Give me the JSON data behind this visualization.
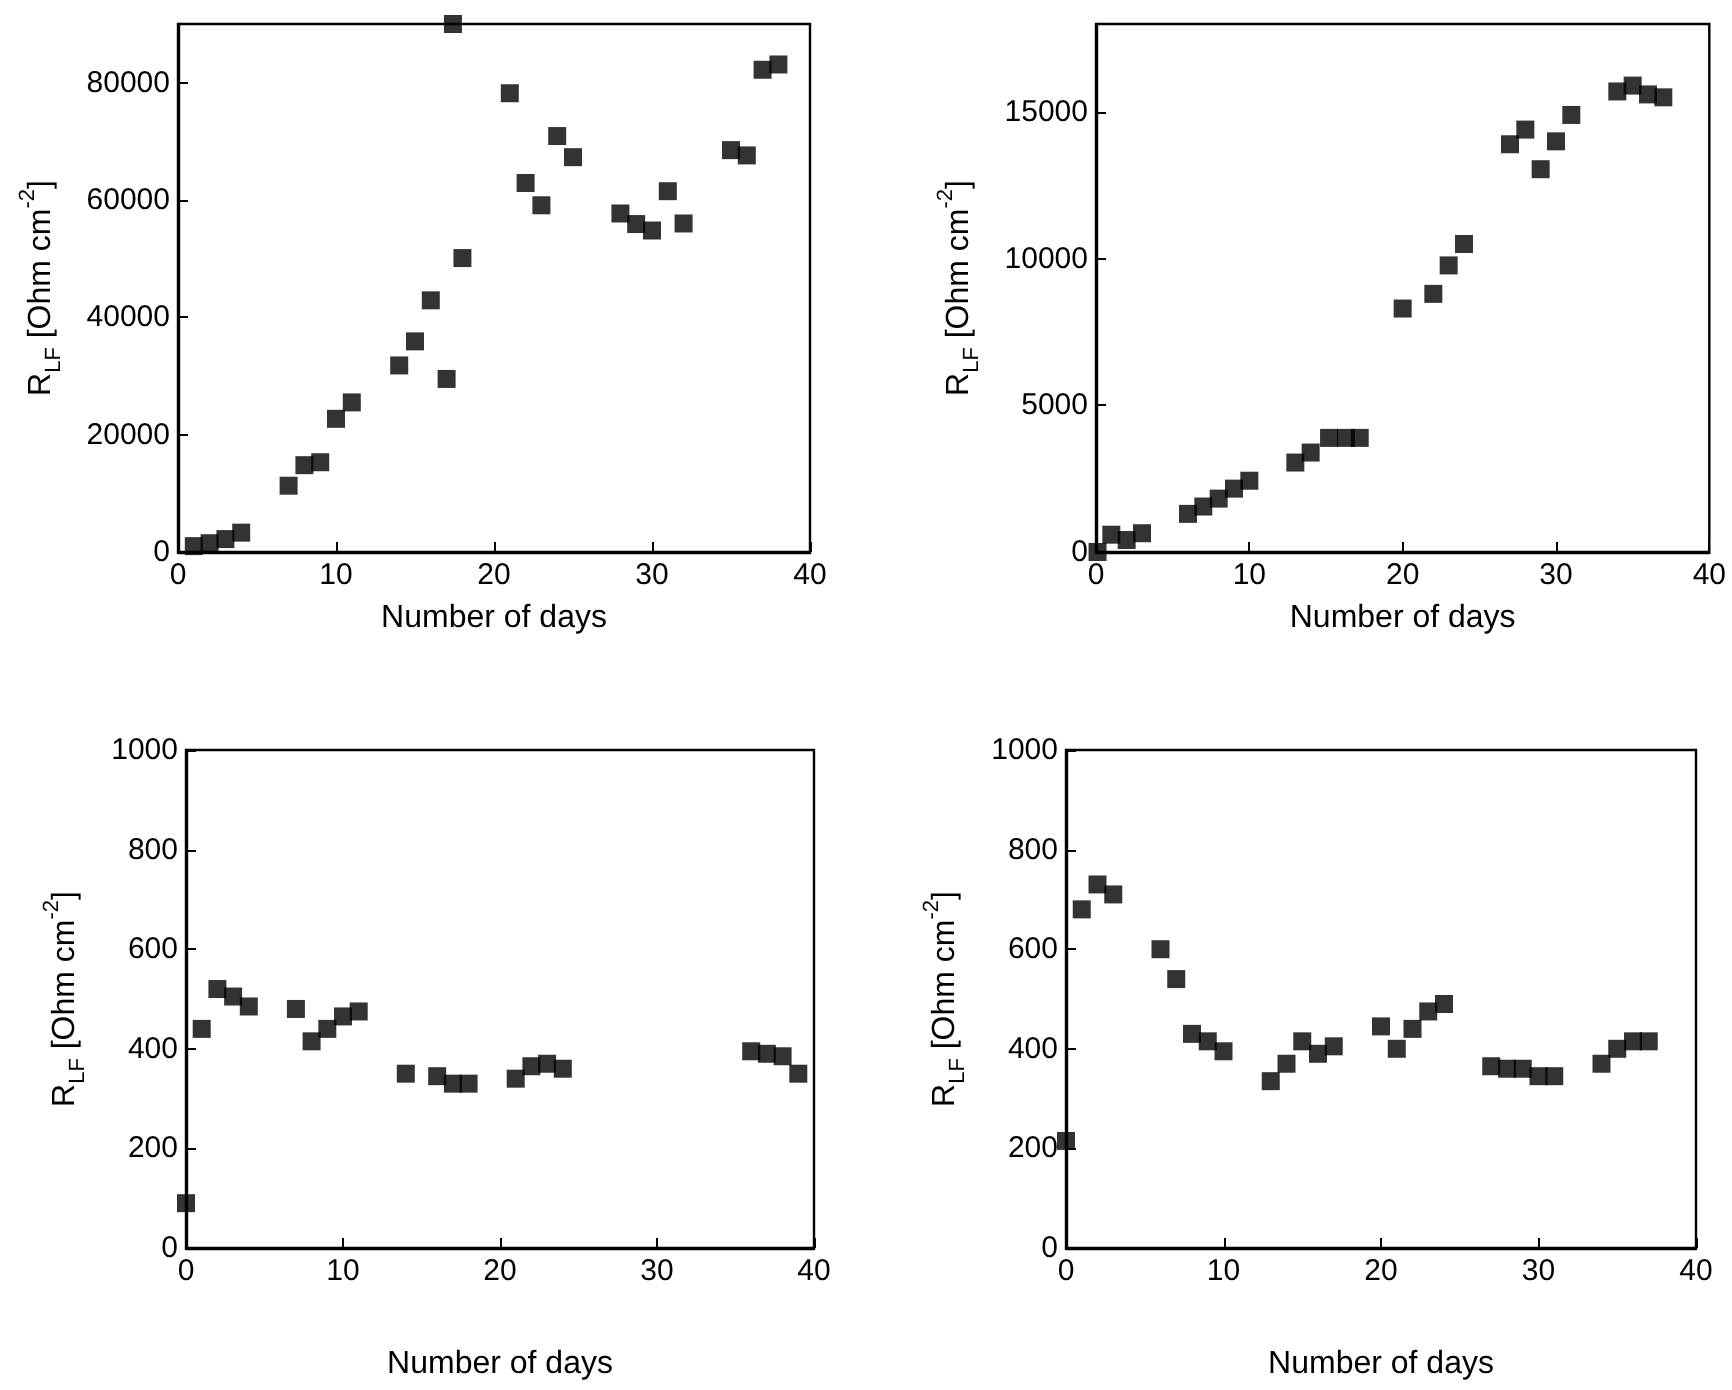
{
  "chart_data": [
    {
      "type": "scatter",
      "xlabel": "Number of days",
      "ylabel": "R$_{LF}$ [Ohm cm$^{-2}$]",
      "color": "#000000",
      "marker": "square",
      "grid": false,
      "x": [
        1,
        2,
        3,
        4,
        7,
        8,
        9,
        10,
        11,
        14,
        15,
        16,
        17,
        17.4,
        18,
        21,
        22,
        23,
        24,
        25,
        28,
        29,
        30,
        31,
        32,
        35,
        36,
        37,
        38
      ],
      "values": [
        1000,
        1500,
        2200,
        3300,
        11300,
        14800,
        15300,
        22700,
        25500,
        31800,
        35900,
        42900,
        29500,
        90000,
        50100,
        78200,
        62900,
        59100,
        70900,
        67300,
        57700,
        55900,
        54800,
        61500,
        56000,
        68500,
        67600,
        82200,
        83100
      ],
      "xlim": [
        0,
        40
      ],
      "xticks": [
        0,
        10,
        20,
        30,
        40
      ],
      "ylim": [
        0,
        90000
      ],
      "yticks": [
        0,
        20000,
        40000,
        60000,
        80000
      ]
    },
    {
      "type": "scatter",
      "xlabel": "Number of days",
      "ylabel": "R$_{LF}$ [Ohm cm$^{-2}$]",
      "color": "#000000",
      "marker": "square",
      "grid": false,
      "x": [
        0.1,
        1,
        2,
        3,
        6,
        7,
        8,
        9,
        10,
        13,
        14,
        15.2,
        16.3,
        17.2,
        20,
        22,
        23,
        24,
        27,
        28,
        29,
        30,
        31,
        34,
        35,
        36,
        37
      ],
      "values": [
        0,
        590,
        410,
        640,
        1300,
        1550,
        1820,
        2160,
        2430,
        3050,
        3390,
        3890,
        3890,
        3890,
        8300,
        8800,
        9770,
        10500,
        13900,
        14400,
        13050,
        14000,
        14900,
        15700,
        15900,
        15600,
        15500
      ],
      "xlim": [
        0,
        40
      ],
      "xticks": [
        0,
        10,
        20,
        30,
        40
      ],
      "ylim": [
        0,
        18000
      ],
      "yticks": [
        0,
        5000,
        10000,
        15000
      ]
    },
    {
      "type": "scatter",
      "xlabel": "Number of days",
      "ylabel": "R$_{LF}$ [Ohm cm$^{-2}$]",
      "color": "#000000",
      "marker": "square",
      "grid": false,
      "x": [
        0,
        1,
        2,
        3,
        4,
        7,
        8,
        9,
        10,
        11,
        14,
        16,
        17,
        18,
        21,
        22,
        23,
        24,
        36,
        37,
        38,
        39
      ],
      "values": [
        90,
        440,
        520,
        505,
        485,
        480,
        415,
        440,
        465,
        475,
        350,
        345,
        330,
        330,
        340,
        365,
        370,
        360,
        395,
        390,
        385,
        350
      ],
      "xlim": [
        0,
        40
      ],
      "xticks": [
        0,
        10,
        20,
        30,
        40
      ],
      "ylim": [
        0,
        1000
      ],
      "yticks": [
        0,
        200,
        400,
        600,
        800,
        1000
      ]
    },
    {
      "type": "scatter",
      "xlabel": "Number of days",
      "ylabel": "R$_{LF}$ [Ohm cm$^{-2}$]",
      "color": "#000000",
      "marker": "square",
      "grid": false,
      "x": [
        0,
        1,
        2,
        3,
        6,
        7,
        8,
        9,
        10,
        13,
        14,
        15,
        16,
        17,
        20,
        21,
        22,
        23,
        24,
        27,
        28,
        29,
        30,
        31,
        34,
        35,
        36,
        37
      ],
      "values": [
        215,
        680,
        730,
        710,
        600,
        540,
        430,
        415,
        395,
        335,
        370,
        415,
        390,
        405,
        445,
        400,
        440,
        475,
        490,
        365,
        360,
        360,
        345,
        345,
        370,
        400,
        415,
        415
      ],
      "xlim": [
        0,
        40
      ],
      "xticks": [
        0,
        10,
        20,
        30,
        40
      ],
      "ylim": [
        0,
        1000
      ],
      "yticks": [
        0,
        200,
        400,
        600,
        800,
        1000
      ]
    }
  ]
}
